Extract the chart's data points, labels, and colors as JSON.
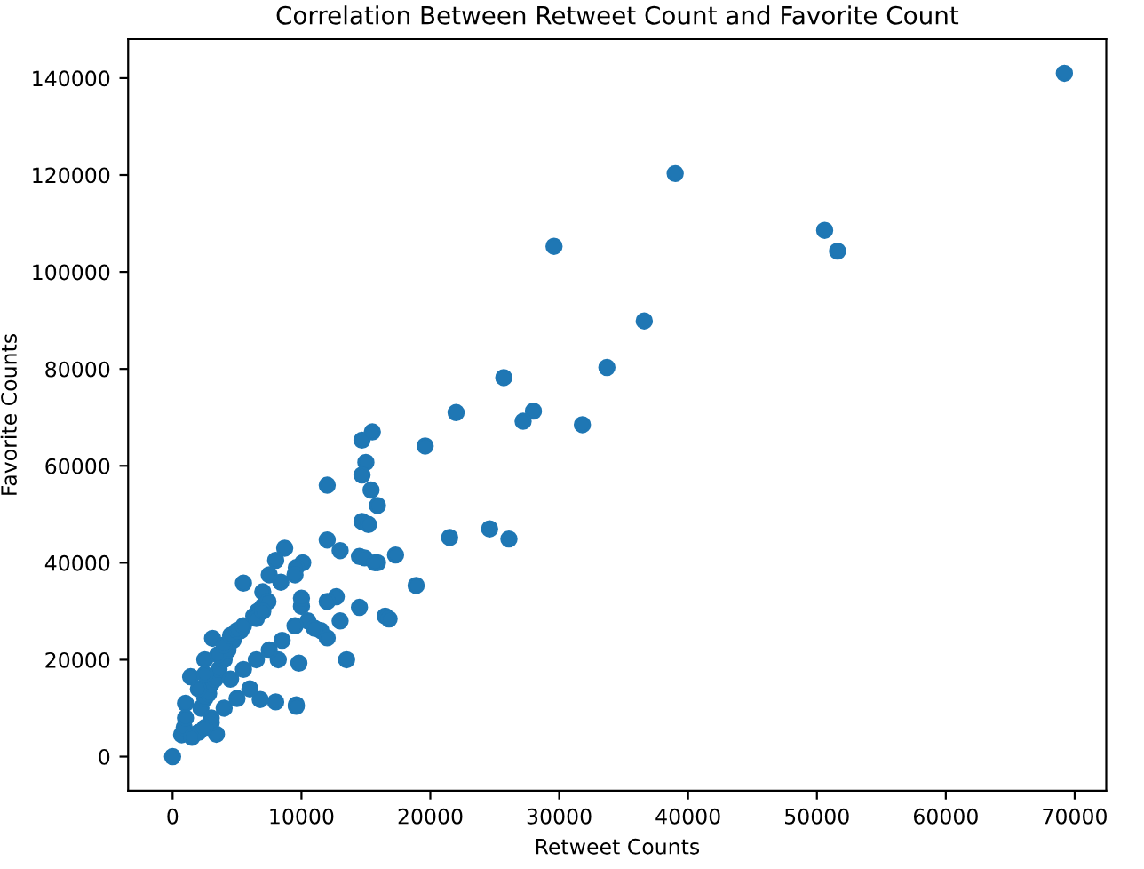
{
  "chart_data": {
    "type": "scatter",
    "title": "Correlation Between Retweet Count and Favorite Count",
    "xlabel": "Retweet Counts",
    "ylabel": "Favorite Counts",
    "marker": "circle",
    "grid": false,
    "xlim": [
      -3450,
      72450
    ],
    "ylim": [
      -7050,
      148050
    ],
    "xticks": [
      0,
      10000,
      20000,
      30000,
      40000,
      50000,
      60000,
      70000
    ],
    "yticks": [
      0,
      20000,
      40000,
      60000,
      80000,
      100000,
      120000,
      140000
    ],
    "series": [
      {
        "color": "#1f77b4",
        "x": [
          69200,
          39000,
          29600,
          50600,
          51600,
          36600,
          33700,
          25700,
          22000,
          28000,
          27200,
          31800,
          15500,
          14700,
          19600,
          15000,
          14700,
          12000,
          15400,
          15900,
          14700,
          15200,
          24600,
          21500,
          26100,
          12000,
          13000,
          14500,
          14900,
          15900,
          15700,
          17300,
          8700,
          8000,
          10100,
          9600,
          18900,
          9500,
          7500,
          5500,
          8400,
          7000,
          12700,
          14500,
          12000,
          16500,
          16800,
          13500,
          9800,
          9600,
          8000,
          13000,
          10500,
          11500,
          12000,
          9500,
          10000,
          10000,
          11000,
          0,
          700,
          900,
          1000,
          1400,
          2500,
          3100,
          3400,
          6800,
          9600,
          8200,
          2200,
          2500,
          2800,
          3000,
          3300,
          3600,
          4000,
          4300,
          4700,
          5300,
          6300,
          6600,
          7000,
          7400,
          1000,
          2000,
          2500,
          3500,
          4000,
          4500,
          5000,
          5500,
          6500,
          7000,
          3000,
          4000,
          5000,
          6000,
          4500,
          5500,
          6500,
          7500,
          8500,
          2000,
          3000,
          1500,
          2500
        ],
        "values": [
          141000,
          120300,
          105300,
          108600,
          104300,
          89900,
          80300,
          78200,
          71000,
          71300,
          69200,
          68500,
          67000,
          65300,
          64100,
          60700,
          58100,
          56000,
          55000,
          51800,
          48500,
          47900,
          47000,
          45200,
          44900,
          44700,
          42500,
          41300,
          41000,
          40000,
          40000,
          41600,
          43000,
          40500,
          40000,
          39000,
          35300,
          37500,
          37500,
          35800,
          36000,
          34000,
          33000,
          30800,
          32000,
          29000,
          28400,
          20000,
          19300,
          10700,
          11300,
          28000,
          28000,
          26000,
          24500,
          27000,
          31000,
          32700,
          26500,
          0,
          4500,
          6000,
          11000,
          16500,
          20000,
          24400,
          4600,
          11800,
          10400,
          20000,
          10000,
          12000,
          13000,
          15000,
          16000,
          18000,
          20000,
          22000,
          24000,
          26000,
          29000,
          30000,
          31000,
          32000,
          8000,
          14000,
          17000,
          21000,
          23000,
          25000,
          26000,
          27000,
          28500,
          30000,
          8000,
          10000,
          12000,
          14000,
          16000,
          18000,
          20000,
          22000,
          24000,
          5000,
          7000,
          4000,
          6000
        ]
      }
    ]
  }
}
